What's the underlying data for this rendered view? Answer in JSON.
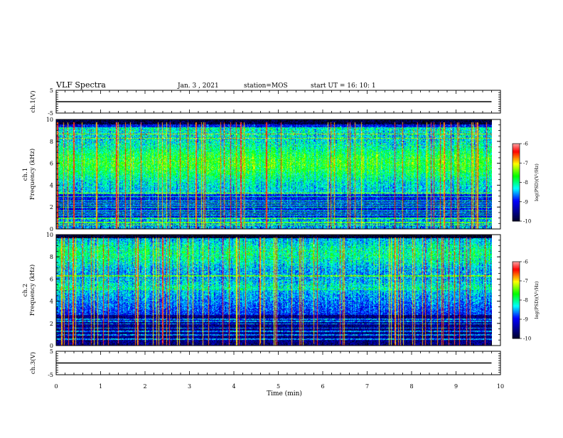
{
  "header": {
    "title": "VLF Spectra",
    "date": "Jan. 3 , 2021",
    "station": "station=MOS",
    "start_ut": "start UT =  16: 10: 1"
  },
  "chart_data": [
    {
      "type": "line",
      "panel": "ch1-waveform",
      "ylabel": "ch.1(V)",
      "ylim": [
        -5,
        5
      ],
      "yticks": [
        5,
        -5
      ],
      "xlim": [
        0,
        10
      ],
      "series": [
        {
          "x": [
            0,
            9.8
          ],
          "values": [
            0,
            0
          ]
        }
      ]
    },
    {
      "type": "heatmap",
      "panel": "ch1-spectrogram",
      "ylabel": "ch.1\nFrequency (kHz)",
      "ylim": [
        0,
        10
      ],
      "yticks": [
        0,
        2,
        4,
        6,
        8,
        10
      ],
      "xlim": [
        0,
        10
      ],
      "data_xlim": [
        0,
        9.8
      ],
      "colorbar": {
        "label": "log(PSD)(V²/Hz)",
        "range": [
          -10,
          -6
        ],
        "ticks": [
          -6,
          -7,
          -8,
          -9,
          -10
        ]
      }
    },
    {
      "type": "heatmap",
      "panel": "ch2-spectrogram",
      "ylabel": "ch.2\nFrequency (kHz)",
      "ylim": [
        0,
        10
      ],
      "yticks": [
        0,
        2,
        4,
        6,
        8,
        10
      ],
      "xlim": [
        0,
        10
      ],
      "data_xlim": [
        0,
        9.8
      ],
      "colorbar": {
        "label": "log(PSD)(V²/Hz)",
        "range": [
          -10,
          -6
        ],
        "ticks": [
          -6,
          -7,
          -8,
          -9,
          -10
        ]
      }
    },
    {
      "type": "line",
      "panel": "ch3-waveform",
      "ylabel": "ch.3(V)",
      "ylim": [
        -5,
        5
      ],
      "yticks": [
        5,
        -5
      ],
      "xlim": [
        0,
        10
      ],
      "series": [
        {
          "x": [
            0,
            9.8
          ],
          "values": [
            0,
            0
          ]
        }
      ]
    }
  ],
  "x_axis": {
    "label": "Time (min)",
    "ticks": [
      "0",
      "1",
      "2",
      "3",
      "4",
      "5",
      "6",
      "7",
      "8",
      "9",
      "10"
    ]
  },
  "colors": {
    "colormap": [
      "#000000",
      "#000080",
      "#0000ff",
      "#00ffff",
      "#00ff00",
      "#ffff00",
      "#ff0000",
      "#ffffff"
    ]
  }
}
